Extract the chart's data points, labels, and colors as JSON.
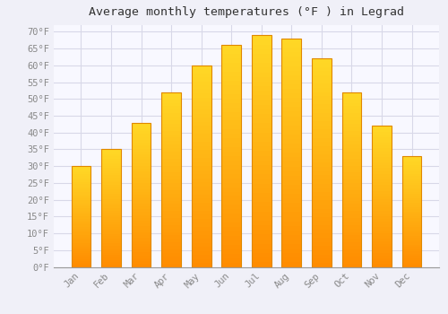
{
  "title": "Average monthly temperatures (°F ) in Legrad",
  "months": [
    "Jan",
    "Feb",
    "Mar",
    "Apr",
    "May",
    "Jun",
    "Jul",
    "Aug",
    "Sep",
    "Oct",
    "Nov",
    "Dec"
  ],
  "values": [
    30,
    35,
    43,
    52,
    60,
    66,
    69,
    68,
    62,
    52,
    42,
    33
  ],
  "bar_color_main": "#FFAA00",
  "bar_color_light": "#FFD060",
  "bar_edge_color": "#E08800",
  "background_color": "#F0F0F8",
  "plot_bg_color": "#F8F8FF",
  "grid_color": "#D8D8E8",
  "ylim": [
    0,
    72
  ],
  "yticks": [
    0,
    5,
    10,
    15,
    20,
    25,
    30,
    35,
    40,
    45,
    50,
    55,
    60,
    65,
    70
  ],
  "title_fontsize": 9.5,
  "tick_fontsize": 7.5,
  "tick_color": "#888888",
  "title_color": "#333333",
  "font_family": "monospace"
}
